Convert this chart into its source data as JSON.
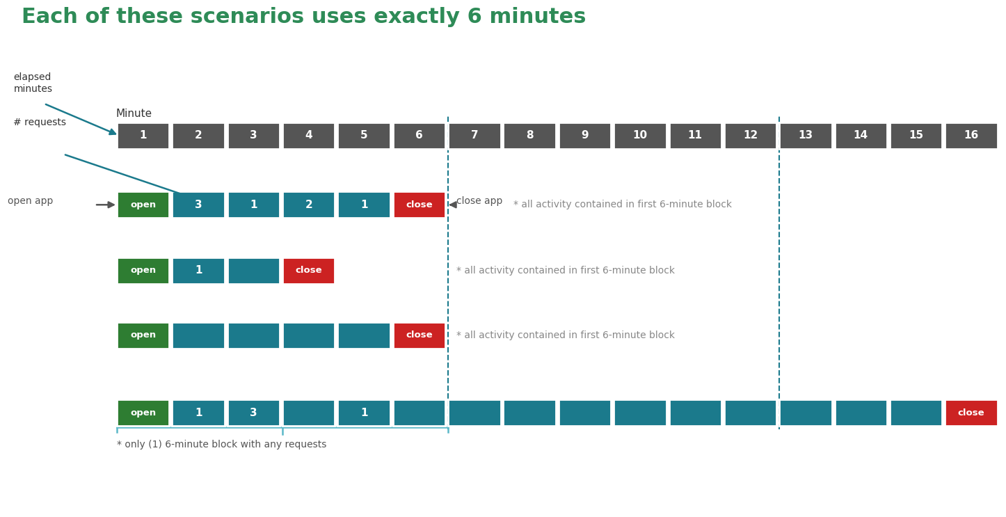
{
  "title": "Each of these scenarios uses exactly 6 minutes",
  "title_color": "#2E8B57",
  "title_fontsize": 22,
  "num_minutes": 16,
  "header_color": "#555555",
  "teal_color": "#1B7A8C",
  "green_color": "#2E7D32",
  "red_color": "#CC2222",
  "white_text": "#FFFFFF",
  "gray_text": "#888888",
  "dashed_line_color": "#1B7A8C",
  "arrow_color": "#1B7A8C",
  "scenario1": {
    "cells": [
      {
        "col": 0,
        "type": "open",
        "label": "open"
      },
      {
        "col": 1,
        "type": "teal",
        "label": "3"
      },
      {
        "col": 2,
        "type": "teal",
        "label": "1"
      },
      {
        "col": 3,
        "type": "teal",
        "label": "2"
      },
      {
        "col": 4,
        "type": "teal",
        "label": "1"
      },
      {
        "col": 5,
        "type": "close",
        "label": "close"
      }
    ]
  },
  "scenario2": {
    "cells": [
      {
        "col": 0,
        "type": "open",
        "label": "open"
      },
      {
        "col": 1,
        "type": "teal",
        "label": "1"
      },
      {
        "col": 2,
        "type": "teal",
        "label": ""
      },
      {
        "col": 3,
        "type": "close",
        "label": "close"
      }
    ]
  },
  "scenario3": {
    "cells": [
      {
        "col": 0,
        "type": "open",
        "label": "open"
      },
      {
        "col": 1,
        "type": "teal",
        "label": ""
      },
      {
        "col": 2,
        "type": "teal",
        "label": ""
      },
      {
        "col": 3,
        "type": "teal",
        "label": ""
      },
      {
        "col": 4,
        "type": "teal",
        "label": ""
      },
      {
        "col": 5,
        "type": "close",
        "label": "close"
      }
    ]
  },
  "scenario4": {
    "cells": [
      {
        "col": 0,
        "type": "open",
        "label": "open"
      },
      {
        "col": 1,
        "type": "teal",
        "label": "1"
      },
      {
        "col": 2,
        "type": "teal",
        "label": "3"
      },
      {
        "col": 3,
        "type": "teal",
        "label": ""
      },
      {
        "col": 4,
        "type": "teal",
        "label": "1"
      },
      {
        "col": 5,
        "type": "teal",
        "label": ""
      },
      {
        "col": 6,
        "type": "teal",
        "label": ""
      },
      {
        "col": 7,
        "type": "teal",
        "label": ""
      },
      {
        "col": 8,
        "type": "teal",
        "label": ""
      },
      {
        "col": 9,
        "type": "teal",
        "label": ""
      },
      {
        "col": 10,
        "type": "teal",
        "label": ""
      },
      {
        "col": 11,
        "type": "teal",
        "label": ""
      },
      {
        "col": 12,
        "type": "teal",
        "label": ""
      },
      {
        "col": 13,
        "type": "teal",
        "label": ""
      },
      {
        "col": 14,
        "type": "teal",
        "label": ""
      },
      {
        "col": 15,
        "type": "close",
        "label": "close"
      }
    ]
  }
}
